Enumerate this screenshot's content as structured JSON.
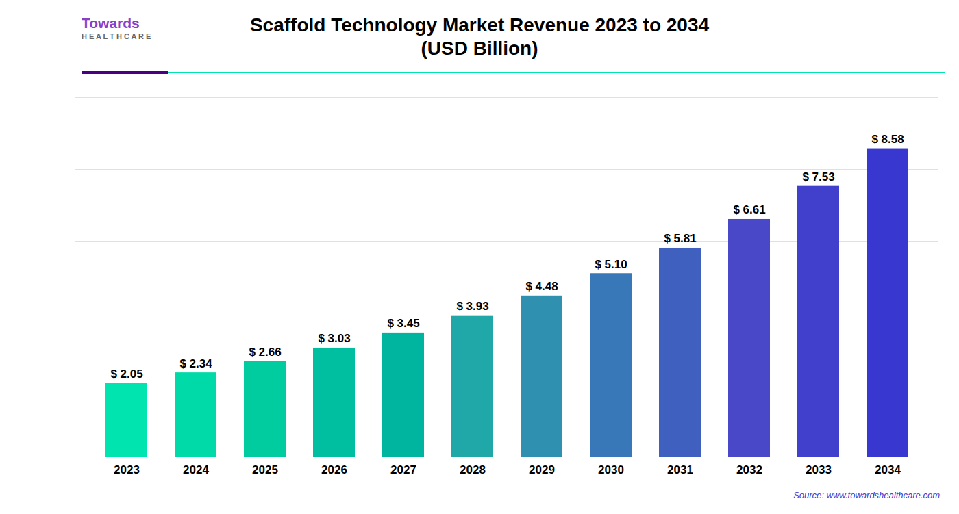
{
  "chart_data": {
    "type": "bar",
    "title": "Scaffold Technology Market Revenue 2023 to 2034",
    "subtitle": "(USD Billion)",
    "annotations": [
      "Towards",
      "H E A L T H C A R E",
      "Source: www.towardshealthcare.com"
    ],
    "categories": [
      "2023",
      "2024",
      "2025",
      "2026",
      "2027",
      "2028",
      "2029",
      "2030",
      "2031",
      "2032",
      "2033",
      "2034"
    ],
    "values": [
      2.05,
      2.34,
      2.66,
      3.03,
      3.45,
      3.93,
      4.48,
      5.1,
      5.81,
      6.61,
      7.53,
      8.58
    ],
    "value_labels": [
      "$ 2.05",
      "$ 2.34",
      "$ 2.66",
      "$ 3.03",
      "$ 3.45",
      "$ 3.93",
      "$ 4.48",
      "$ 5.10",
      "$ 5.81",
      "$ 6.61",
      "$ 7.53",
      "$ 8.58"
    ],
    "data_labels": true,
    "colors": [
      "#00E5B0",
      "#00D9A8",
      "#00CCA0",
      "#00BFA0",
      "#00B5A0",
      "#20A8A8",
      "#3090B0",
      "#3878B8",
      "#4060C0",
      "#4848C8",
      "#4040CC",
      "#3838D0"
    ],
    "ylim": [
      0,
      10
    ],
    "yticks": [
      0,
      2,
      4,
      6,
      8,
      10
    ],
    "grid": true,
    "tick_labels": "x"
  }
}
